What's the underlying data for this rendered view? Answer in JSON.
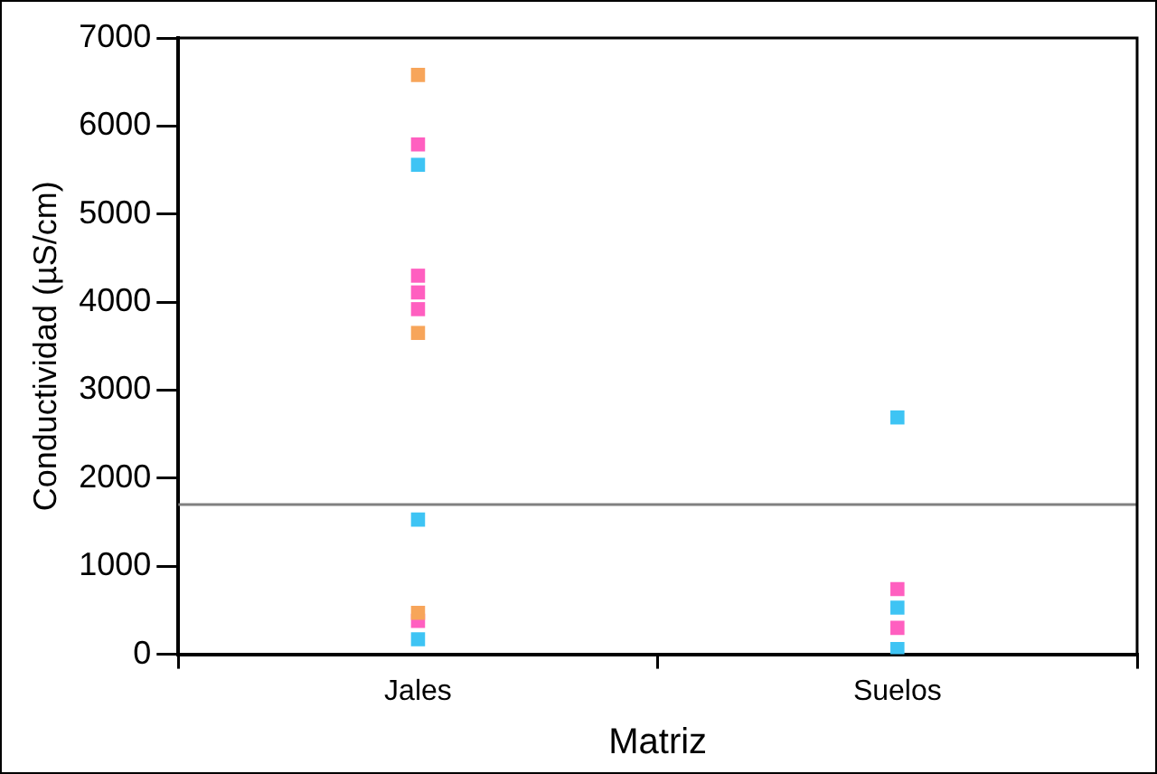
{
  "chart_data": {
    "type": "scatter",
    "xlabel": "Matriz",
    "ylabel": "Conductividad (µS/cm)",
    "categories": [
      "Jales",
      "Suelos"
    ],
    "ylim": [
      0,
      7000
    ],
    "yticks": [
      0,
      1000,
      2000,
      3000,
      4000,
      5000,
      6000,
      7000
    ],
    "grid": false,
    "legend": false,
    "marker": "square",
    "series": [
      {
        "color": "#f7a55a",
        "x": [
          "Jales",
          "Jales",
          "Jales"
        ],
        "values": [
          6580,
          3650,
          470
        ]
      },
      {
        "color": "#ff5fc0",
        "x": [
          "Jales",
          "Jales",
          "Jales",
          "Jales",
          "Jales",
          "Suelos",
          "Suelos"
        ],
        "values": [
          5790,
          4300,
          4110,
          3920,
          380,
          740,
          300
        ]
      },
      {
        "color": "#3ec4f4",
        "x": [
          "Jales",
          "Jales",
          "Jales",
          "Jales",
          "Suelos",
          "Suelos",
          "Suelos"
        ],
        "values": [
          5560,
          1530,
          null,
          170,
          2690,
          530,
          60
        ]
      }
    ],
    "ref_lines": [
      {
        "axis": "y",
        "value": 1700,
        "color": "#808080"
      }
    ]
  }
}
